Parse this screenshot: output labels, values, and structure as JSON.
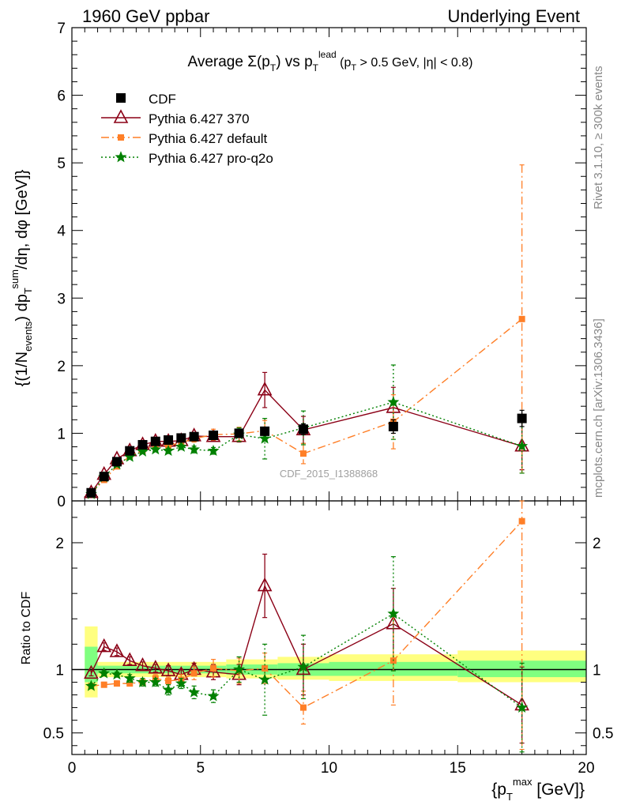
{
  "header": {
    "left": "1960 GeV ppbar",
    "right": "Underlying Event"
  },
  "side_labels": {
    "top": "Rivet 3.1.10, ≥ 300k events",
    "bottom": "mcplots.cern.ch [arXiv:1306.3436]"
  },
  "watermark": "CDF_2015_I1388868",
  "colors": {
    "cdf": "#000000",
    "p370": "#8b0016",
    "pdefault": "#ff7f27",
    "pq2o": "#008000",
    "band_yellow": "#ffff80",
    "band_green": "#80ff80"
  },
  "chart_data": [
    {
      "type": "scatter",
      "panel": "main",
      "title": "Average Σ(pT) vs pT lead (pT > 0.5 GeV, |η| < 0.8)",
      "ylabel": "{(1/Nevents) dpTsum/dη, dφ [GeV]}",
      "xlim": [
        0,
        20
      ],
      "ylim": [
        0,
        7
      ],
      "x_ticks": [
        0,
        5,
        10,
        15,
        20
      ],
      "y_ticks": [
        0,
        1,
        2,
        3,
        4,
        5,
        6,
        7
      ],
      "legend_position": "top-left",
      "series": [
        {
          "name": "CDF",
          "style": "square",
          "x": [
            0.75,
            1.25,
            1.75,
            2.25,
            2.75,
            3.25,
            3.75,
            4.25,
            4.75,
            5.5,
            6.5,
            7.5,
            9.0,
            12.5,
            17.5
          ],
          "y": [
            0.12,
            0.36,
            0.58,
            0.74,
            0.83,
            0.88,
            0.9,
            0.93,
            0.95,
            0.97,
            1.0,
            1.03,
            1.06,
            1.1,
            1.22
          ],
          "err": [
            0.01,
            0.01,
            0.02,
            0.02,
            0.02,
            0.02,
            0.02,
            0.03,
            0.03,
            0.04,
            0.05,
            0.06,
            0.08,
            0.1,
            0.12
          ]
        },
        {
          "name": "Pythia 6.427 370",
          "style": "triangle",
          "x": [
            0.75,
            1.25,
            1.75,
            2.25,
            2.75,
            3.25,
            3.75,
            4.25,
            4.75,
            5.5,
            6.5,
            7.5,
            9.0,
            12.5,
            17.5
          ],
          "y": [
            0.12,
            0.39,
            0.62,
            0.74,
            0.83,
            0.88,
            0.88,
            0.89,
            0.96,
            0.95,
            0.95,
            1.64,
            1.05,
            1.38,
            0.81
          ],
          "err": [
            0.01,
            0.02,
            0.02,
            0.03,
            0.03,
            0.03,
            0.04,
            0.04,
            0.05,
            0.06,
            0.08,
            0.26,
            0.2,
            0.3,
            0.35
          ]
        },
        {
          "name": "Pythia 6.427 default",
          "style": "small-square",
          "x": [
            0.75,
            1.25,
            1.75,
            2.25,
            2.75,
            3.25,
            3.75,
            4.25,
            4.75,
            5.5,
            6.5,
            7.5,
            9.0,
            12.5,
            17.5
          ],
          "y": [
            0.11,
            0.31,
            0.51,
            0.66,
            0.75,
            0.82,
            0.82,
            0.86,
            0.92,
            0.98,
            0.99,
            1.04,
            0.7,
            1.17,
            2.69
          ],
          "err": [
            0.01,
            0.02,
            0.02,
            0.03,
            0.03,
            0.04,
            0.04,
            0.05,
            0.05,
            0.08,
            0.1,
            0.15,
            0.15,
            0.4,
            2.28
          ]
        },
        {
          "name": "Pythia 6.427 pro-q2o",
          "style": "star",
          "x": [
            0.75,
            1.25,
            1.75,
            2.25,
            2.75,
            3.25,
            3.75,
            4.25,
            4.75,
            5.5,
            6.5,
            7.5,
            9.0,
            12.5,
            17.5
          ],
          "y": [
            0.1,
            0.35,
            0.54,
            0.65,
            0.73,
            0.76,
            0.74,
            0.8,
            0.76,
            0.74,
            0.98,
            0.92,
            1.08,
            1.46,
            0.81
          ],
          "err": [
            0.01,
            0.02,
            0.02,
            0.03,
            0.03,
            0.03,
            0.04,
            0.04,
            0.05,
            0.05,
            0.1,
            0.3,
            0.25,
            0.55,
            0.4
          ]
        }
      ]
    },
    {
      "type": "scatter",
      "panel": "ratio",
      "ylabel": "Ratio to CDF",
      "xlabel": "{pTmax [GeV]}",
      "xlim": [
        0,
        20
      ],
      "ylim": [
        0.33,
        2.33
      ],
      "x_ticks": [
        0,
        5,
        10,
        15,
        20
      ],
      "y_ticks": [
        0.5,
        1,
        2
      ],
      "reference": 1,
      "bands": [
        {
          "x0": 0.5,
          "x1": 1.0,
          "yellow": [
            0.78,
            1.34
          ],
          "green": [
            0.9,
            1.18
          ]
        },
        {
          "x0": 1.0,
          "x1": 6.0,
          "yellow": [
            0.94,
            1.06
          ],
          "green": [
            0.97,
            1.03
          ]
        },
        {
          "x0": 6.0,
          "x1": 8.0,
          "yellow": [
            0.93,
            1.08
          ],
          "green": [
            0.96,
            1.04
          ]
        },
        {
          "x0": 8.0,
          "x1": 10.0,
          "yellow": [
            0.92,
            1.1
          ],
          "green": [
            0.95,
            1.05
          ]
        },
        {
          "x0": 10.0,
          "x1": 15.0,
          "yellow": [
            0.91,
            1.12
          ],
          "green": [
            0.95,
            1.06
          ]
        },
        {
          "x0": 15.0,
          "x1": 20.0,
          "yellow": [
            0.9,
            1.15
          ],
          "green": [
            0.94,
            1.07
          ]
        }
      ],
      "series": [
        {
          "name": "Pythia 6.427 370",
          "style": "triangle",
          "x": [
            0.75,
            1.25,
            1.75,
            2.25,
            2.75,
            3.25,
            3.75,
            4.25,
            4.75,
            5.5,
            6.5,
            7.5,
            9.0,
            12.5,
            17.5
          ],
          "y": [
            0.97,
            1.18,
            1.14,
            1.07,
            1.03,
            1.01,
            0.99,
            0.96,
            1.0,
            0.98,
            0.96,
            1.66,
            1.0,
            1.36,
            0.72
          ],
          "err": [
            0.02,
            0.03,
            0.03,
            0.03,
            0.03,
            0.03,
            0.04,
            0.04,
            0.05,
            0.06,
            0.08,
            0.25,
            0.2,
            0.28,
            0.3
          ]
        },
        {
          "name": "Pythia 6.427 default",
          "style": "small-square",
          "x": [
            0.75,
            1.25,
            1.75,
            2.25,
            2.75,
            3.25,
            3.75,
            4.25,
            4.75,
            5.5,
            6.5,
            7.5,
            9.0,
            12.5,
            17.5
          ],
          "y": [
            0.87,
            0.88,
            0.89,
            0.89,
            0.9,
            0.93,
            0.91,
            0.92,
            0.97,
            1.01,
            0.99,
            1.01,
            0.7,
            1.07,
            2.17
          ],
          "err": [
            0.01,
            0.02,
            0.02,
            0.02,
            0.02,
            0.03,
            0.03,
            0.04,
            0.05,
            0.07,
            0.1,
            0.12,
            0.13,
            0.35,
            1.8
          ]
        },
        {
          "name": "Pythia 6.427 pro-q2o",
          "style": "star",
          "x": [
            0.75,
            1.25,
            1.75,
            2.25,
            2.75,
            3.25,
            3.75,
            4.25,
            4.75,
            5.5,
            6.5,
            7.5,
            9.0,
            12.5,
            17.5
          ],
          "y": [
            0.87,
            0.97,
            0.96,
            0.93,
            0.9,
            0.9,
            0.84,
            0.89,
            0.82,
            0.79,
            1.0,
            0.92,
            1.02,
            1.44,
            0.7
          ],
          "err": [
            0.02,
            0.02,
            0.02,
            0.03,
            0.03,
            0.03,
            0.04,
            0.04,
            0.05,
            0.05,
            0.1,
            0.28,
            0.25,
            0.45,
            0.35
          ]
        }
      ]
    }
  ]
}
